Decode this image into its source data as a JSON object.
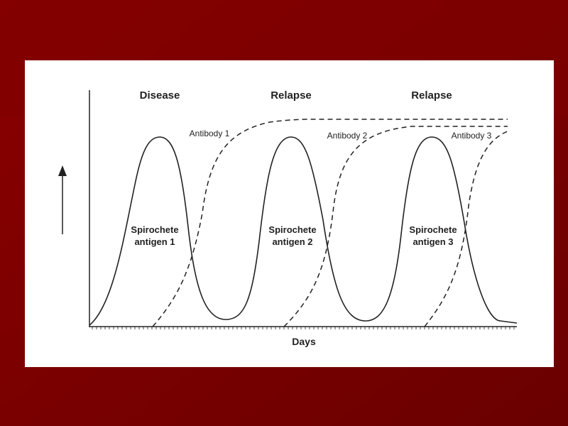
{
  "phases": [
    "Disease",
    "Relapse",
    "Relapse"
  ],
  "antibodies": [
    "Antibody 1",
    "Antibody 2",
    "Antibody 3"
  ],
  "antigens": [
    {
      "lines": [
        "Spirochete",
        "antigen 1"
      ]
    },
    {
      "lines": [
        "Spirochete",
        "antigen 2"
      ]
    },
    {
      "lines": [
        "Spirochete",
        "antigen 3"
      ]
    }
  ],
  "x_axis_label": "Days"
}
